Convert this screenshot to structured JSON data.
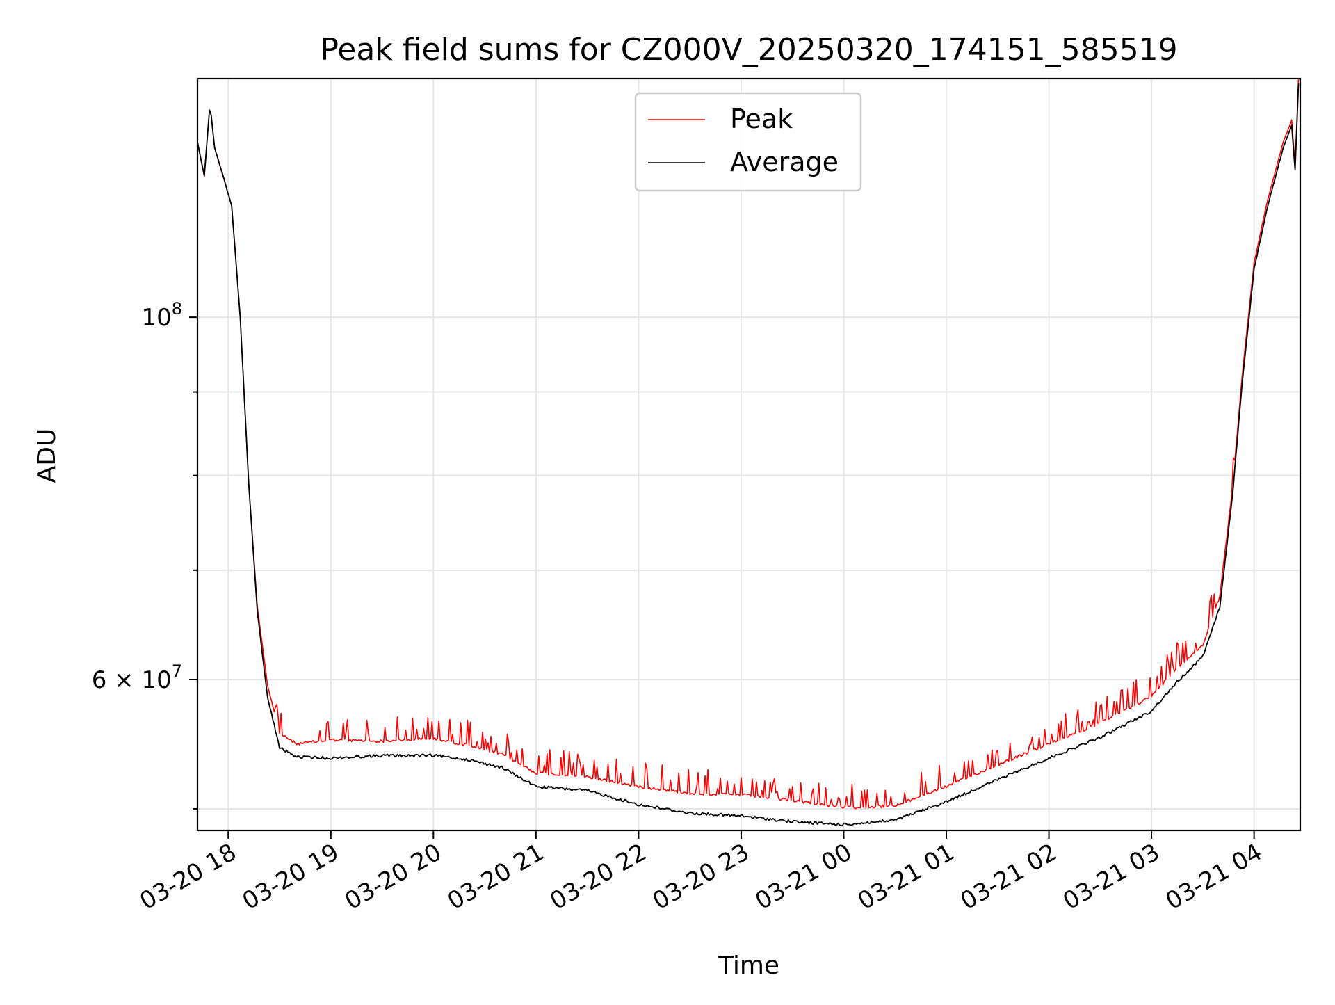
{
  "chart_data": {
    "type": "line",
    "title": "Peak field sums for CZ000V_20250320_174151_585519",
    "xlabel": "Time",
    "ylabel": "ADU",
    "x_scale": "time",
    "y_scale": "log",
    "xlim": [
      "2025-03-20 17:42",
      "2025-03-21 04:27"
    ],
    "ylim": [
      48500000,
      140000000
    ],
    "x_ticks": [
      {
        "t": "2025-03-20 18:00",
        "label": "03-20 18"
      },
      {
        "t": "2025-03-20 19:00",
        "label": "03-20 19"
      },
      {
        "t": "2025-03-20 20:00",
        "label": "03-20 20"
      },
      {
        "t": "2025-03-20 21:00",
        "label": "03-20 21"
      },
      {
        "t": "2025-03-20 22:00",
        "label": "03-20 22"
      },
      {
        "t": "2025-03-20 23:00",
        "label": "03-20 23"
      },
      {
        "t": "2025-03-21 00:00",
        "label": "03-21 00"
      },
      {
        "t": "2025-03-21 01:00",
        "label": "03-21 01"
      },
      {
        "t": "2025-03-21 02:00",
        "label": "03-21 02"
      },
      {
        "t": "2025-03-21 03:00",
        "label": "03-21 03"
      },
      {
        "t": "2025-03-21 04:00",
        "label": "03-21 04"
      }
    ],
    "y_major_ticks": [
      {
        "v": 60000000,
        "base": "6 × 10",
        "exp": "7"
      },
      {
        "v": 100000000,
        "base": "10",
        "exp": "8"
      }
    ],
    "y_minor_ticks": [
      50000000,
      70000000,
      80000000,
      90000000
    ],
    "grid": true,
    "legend_position": "top-center",
    "series": [
      {
        "name": "Peak",
        "color": "#ff0000",
        "points": [
          [
            "2025-03-20 17:42",
            128000000
          ],
          [
            "2025-03-20 17:46",
            122000000
          ],
          [
            "2025-03-20 17:49",
            134000000
          ],
          [
            "2025-03-20 17:50",
            133000000
          ],
          [
            "2025-03-20 17:52",
            127000000
          ],
          [
            "2025-03-20 17:57",
            122000000
          ],
          [
            "2025-03-20 18:02",
            117000000
          ],
          [
            "2025-03-20 18:07",
            100000000
          ],
          [
            "2025-03-20 18:12",
            79000000
          ],
          [
            "2025-03-20 18:17",
            66500000
          ],
          [
            "2025-03-20 18:23",
            59500000
          ],
          [
            "2025-03-20 18:30",
            55600000
          ],
          [
            "2025-03-20 18:40",
            54800000
          ],
          [
            "2025-03-20 19:00",
            55100000
          ],
          [
            "2025-03-20 19:30",
            55000000
          ],
          [
            "2025-03-20 20:00",
            55200000
          ],
          [
            "2025-03-20 20:20",
            54700000
          ],
          [
            "2025-03-20 20:40",
            54000000
          ],
          [
            "2025-03-20 21:00",
            52600000
          ],
          [
            "2025-03-20 21:30",
            52300000
          ],
          [
            "2025-03-20 22:00",
            51600000
          ],
          [
            "2025-03-20 22:30",
            51100000
          ],
          [
            "2025-03-20 23:00",
            51000000
          ],
          [
            "2025-03-20 23:30",
            50600000
          ],
          [
            "2025-03-21 00:00",
            50100000
          ],
          [
            "2025-03-21 00:30",
            50200000
          ],
          [
            "2025-03-21 01:00",
            51600000
          ],
          [
            "2025-03-21 01:30",
            53200000
          ],
          [
            "2025-03-21 02:00",
            54800000
          ],
          [
            "2025-03-21 02:30",
            56400000
          ],
          [
            "2025-03-21 03:00",
            58600000
          ],
          [
            "2025-03-21 03:15",
            61000000
          ],
          [
            "2025-03-21 03:30",
            63000000
          ],
          [
            "2025-03-21 03:40",
            67500000
          ],
          [
            "2025-03-21 03:47",
            78000000
          ],
          [
            "2025-03-21 03:53",
            92000000
          ],
          [
            "2025-03-21 04:00",
            108000000
          ],
          [
            "2025-03-21 04:08",
            118000000
          ],
          [
            "2025-03-21 04:17",
            128000000
          ],
          [
            "2025-03-21 04:22",
            132000000
          ],
          [
            "2025-03-21 04:24",
            124000000
          ],
          [
            "2025-03-21 04:26",
            140000000
          ]
        ]
      },
      {
        "name": "Average",
        "color": "#000000",
        "points": [
          [
            "2025-03-20 17:42",
            128000000
          ],
          [
            "2025-03-20 17:46",
            122000000
          ],
          [
            "2025-03-20 17:49",
            134000000
          ],
          [
            "2025-03-20 17:50",
            133000000
          ],
          [
            "2025-03-20 17:52",
            127000000
          ],
          [
            "2025-03-20 17:57",
            122000000
          ],
          [
            "2025-03-20 18:02",
            117000000
          ],
          [
            "2025-03-20 18:07",
            100000000
          ],
          [
            "2025-03-20 18:12",
            79000000
          ],
          [
            "2025-03-20 18:17",
            66000000
          ],
          [
            "2025-03-20 18:23",
            58500000
          ],
          [
            "2025-03-20 18:30",
            54500000
          ],
          [
            "2025-03-20 18:40",
            53800000
          ],
          [
            "2025-03-20 19:00",
            53700000
          ],
          [
            "2025-03-20 19:30",
            53900000
          ],
          [
            "2025-03-20 20:00",
            53900000
          ],
          [
            "2025-03-20 20:20",
            53600000
          ],
          [
            "2025-03-20 20:40",
            53000000
          ],
          [
            "2025-03-20 21:00",
            51600000
          ],
          [
            "2025-03-20 21:30",
            51300000
          ],
          [
            "2025-03-20 22:00",
            50300000
          ],
          [
            "2025-03-20 22:30",
            49700000
          ],
          [
            "2025-03-20 23:00",
            49500000
          ],
          [
            "2025-03-20 23:30",
            49100000
          ],
          [
            "2025-03-21 00:00",
            48900000
          ],
          [
            "2025-03-21 00:30",
            49200000
          ],
          [
            "2025-03-21 01:00",
            50500000
          ],
          [
            "2025-03-21 01:30",
            52100000
          ],
          [
            "2025-03-21 02:00",
            53700000
          ],
          [
            "2025-03-21 02:30",
            55300000
          ],
          [
            "2025-03-21 03:00",
            57400000
          ],
          [
            "2025-03-21 03:15",
            59800000
          ],
          [
            "2025-03-21 03:30",
            62000000
          ],
          [
            "2025-03-21 03:40",
            66500000
          ],
          [
            "2025-03-21 03:47",
            77000000
          ],
          [
            "2025-03-21 03:53",
            91000000
          ],
          [
            "2025-03-21 04:00",
            107000000
          ],
          [
            "2025-03-21 04:08",
            117000000
          ],
          [
            "2025-03-21 04:17",
            127000000
          ],
          [
            "2025-03-21 04:22",
            131000000
          ],
          [
            "2025-03-21 04:24",
            123000000
          ],
          [
            "2025-03-21 04:26",
            139000000
          ]
        ]
      }
    ]
  }
}
